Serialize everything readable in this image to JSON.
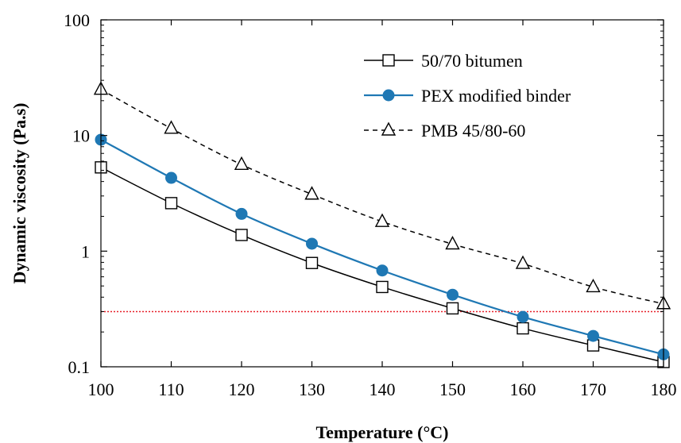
{
  "chart_data": {
    "type": "line",
    "title": "",
    "xlabel": "Temperature (°C)",
    "ylabel": "Dynamic viscosity (Pa.s)",
    "xlim": [
      100,
      180
    ],
    "ylim": [
      0.1,
      100
    ],
    "yscale": "log",
    "xticks": [
      "100",
      "110",
      "120",
      "130",
      "140",
      "150",
      "160",
      "170",
      "180"
    ],
    "yticks": [
      "0.1",
      "1",
      "10",
      "100"
    ],
    "grid": false,
    "legend_position": "top-right",
    "x": [
      100,
      110,
      120,
      130,
      140,
      150,
      160,
      170,
      180
    ],
    "series": [
      {
        "name": "50/70 bitumen",
        "values": [
          5.3,
          2.6,
          1.38,
          0.79,
          0.49,
          0.32,
          0.215,
          0.153,
          0.11
        ],
        "color": "#000000",
        "marker": "square-open",
        "line": "solid"
      },
      {
        "name": "PEX modified binder",
        "values": [
          9.2,
          4.3,
          2.1,
          1.16,
          0.68,
          0.42,
          0.27,
          0.185,
          0.128
        ],
        "color": "#1f78b4",
        "marker": "circle-filled",
        "line": "solid"
      },
      {
        "name": "PMB 45/80-60",
        "values": [
          25,
          11.5,
          5.6,
          3.1,
          1.8,
          1.15,
          0.78,
          0.49,
          0.35
        ],
        "color": "#000000",
        "marker": "triangle-open",
        "line": "dashed"
      }
    ],
    "reference_line": {
      "y": 0.3,
      "color": "#e8202a",
      "style": "dotted"
    }
  }
}
